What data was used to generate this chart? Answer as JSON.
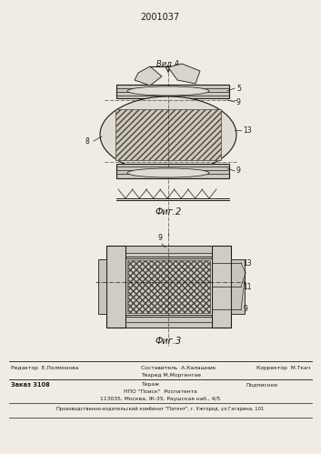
{
  "patent_number": "2001037",
  "background_color": "#f0ece4",
  "line_color": "#1a1a1a",
  "fig2_label": "Фиг.2",
  "fig3_label": "Фиг.3",
  "view_label": "Вид А",
  "footer_line1_left": "Редактор  Е.Полмонова",
  "footer_line1_center1": "Составитель  А.Калашник",
  "footer_line1_center2": "Техред М.Моргентае",
  "footer_line1_right": "Корректор  М.Ткач",
  "footer_line2_left": "Заказ 3108",
  "footer_line2_c1": "Тираж",
  "footer_line2_c2": "Подписное",
  "footer_line2_c3": "НПО \"Поиск\"  Роспатента",
  "footer_line2_c4": "113035, Москва, Ж-35, Раушская наб., 4/5",
  "footer_bottom": "Производственно-издательский комбинат \"Патент\", г. Ужгород, ул.Гагарина, 101"
}
